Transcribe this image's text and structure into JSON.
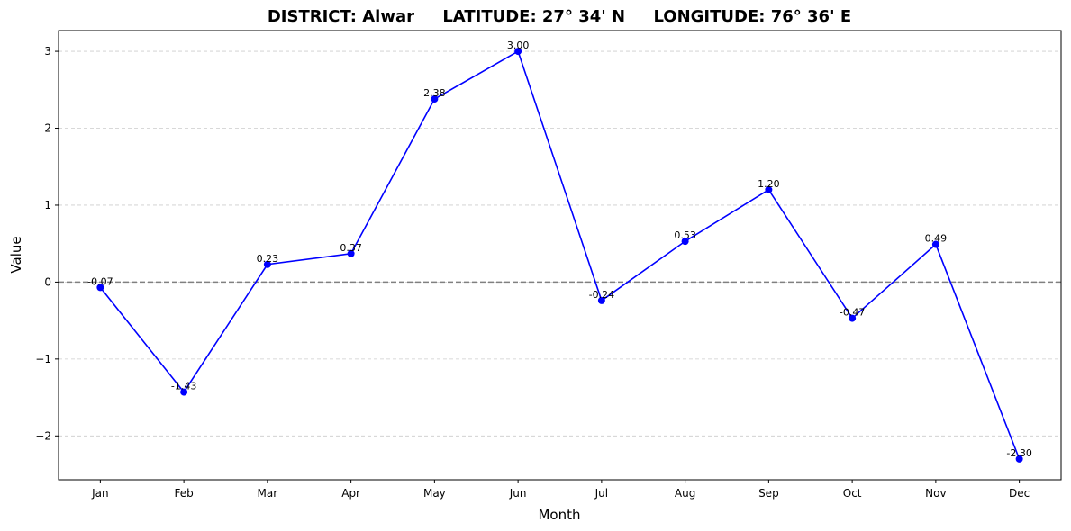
{
  "chart_data": {
    "type": "line",
    "title": "DISTRICT: Alwar     LATITUDE: 27° 34' N     LONGITUDE: 76° 36' E",
    "xlabel": "Month",
    "ylabel": "Value",
    "categories": [
      "Jan",
      "Feb",
      "Mar",
      "Apr",
      "May",
      "Jun",
      "Jul",
      "Aug",
      "Sep",
      "Oct",
      "Nov",
      "Dec"
    ],
    "series": [
      {
        "values": [
          -0.07,
          -1.43,
          0.23,
          0.37,
          2.38,
          3.0,
          -0.24,
          0.53,
          1.2,
          -0.47,
          0.49,
          -2.3
        ],
        "labels": [
          "-0.07",
          "-1.43",
          "0.23",
          "0.37",
          "2.38",
          "3.00",
          "-0.24",
          "0.53",
          "1.20",
          "-0.47",
          "0.49",
          "-2.30"
        ],
        "color": "#0000ff",
        "marker": "circle"
      }
    ],
    "ylim": [
      -2.57,
      3.27
    ],
    "yticks": [
      -2,
      -1,
      0,
      1,
      2,
      3
    ],
    "ytick_labels": [
      "−2",
      "−1",
      "0",
      "1",
      "2",
      "3"
    ],
    "zero_line": {
      "value": 0,
      "color": "#808080",
      "style": "dashed"
    },
    "grid": {
      "y": true,
      "x": false,
      "style": "dashed",
      "color": "#cccccc"
    },
    "legend": "none"
  }
}
